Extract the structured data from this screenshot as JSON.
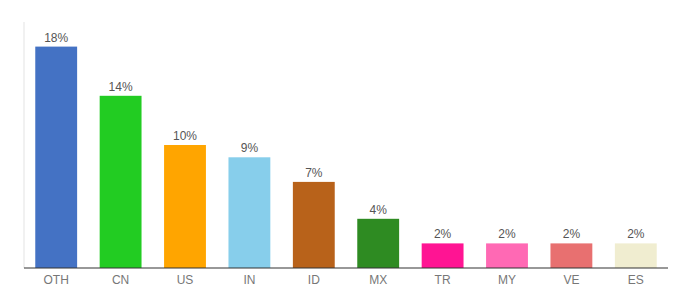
{
  "chart_data": {
    "type": "bar",
    "categories": [
      "OTH",
      "CN",
      "US",
      "IN",
      "ID",
      "MX",
      "TR",
      "MY",
      "VE",
      "ES"
    ],
    "values": [
      18,
      14,
      10,
      9,
      7,
      4,
      2,
      2,
      2,
      2
    ],
    "value_labels": [
      "18%",
      "14%",
      "10%",
      "9%",
      "7%",
      "4%",
      "2%",
      "2%",
      "2%",
      "2%"
    ],
    "colors": [
      "#4472C4",
      "#22CC22",
      "#FFA500",
      "#87CEEB",
      "#B8621A",
      "#2E8B22",
      "#FF1493",
      "#FF69B4",
      "#E87070",
      "#F0EDD0"
    ],
    "ylim": [
      0,
      20
    ],
    "data_labels": true,
    "tick_labels": "x",
    "grid": false
  }
}
